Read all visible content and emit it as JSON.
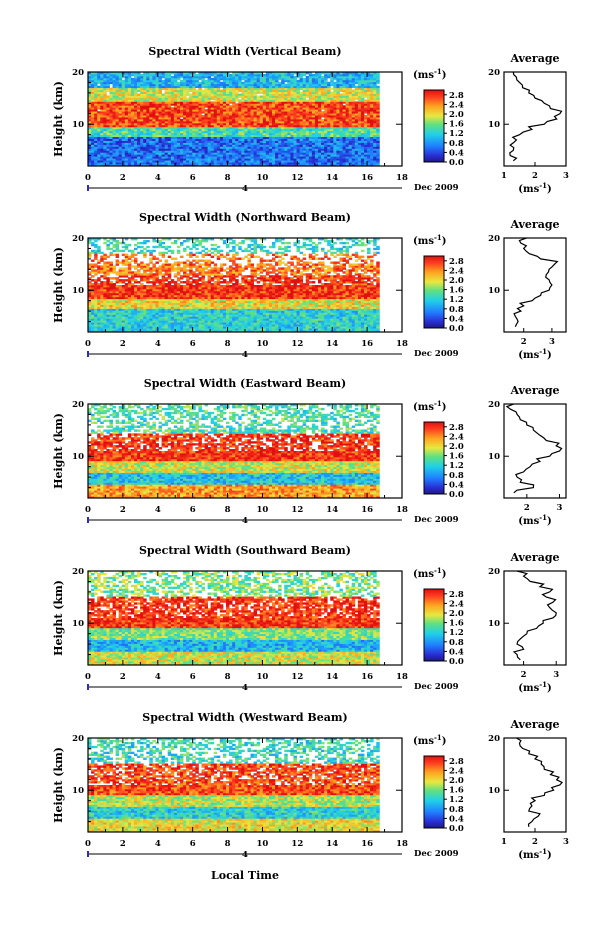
{
  "figure": {
    "xlabel": "Local Time",
    "date_label": "Dec 2009",
    "day_label": "4",
    "colorbar_unit": "(ms",
    "colorbar_unit_exp": "-1",
    "colorbar_ticks": [
      "2.8",
      "2.4",
      "2.0",
      "1.6",
      "1.2",
      "0.8",
      "0.4",
      "0.0"
    ],
    "average_title": "Average",
    "average_unit": "(ms",
    "average_unit_exp": "-1",
    "ylabel": "Height (km)"
  },
  "chart_data": [
    {
      "type": "heatmap",
      "title": "Spectral Width (Vertical Beam)",
      "x_ticks": [
        0,
        2,
        4,
        6,
        8,
        10,
        12,
        14,
        16,
        18
      ],
      "xlim": [
        0,
        18
      ],
      "ylim": [
        2,
        20
      ],
      "y_ticks": [
        10,
        20
      ],
      "colorbar_range": [
        0.0,
        3.0
      ],
      "data_x_end": 16.7,
      "bands": [
        {
          "y0": 2,
          "y1": 7.5,
          "v": 0.6
        },
        {
          "y0": 7.5,
          "y1": 9.5,
          "v": 1.4
        },
        {
          "y0": 9.5,
          "y1": 14.5,
          "v": 2.7
        },
        {
          "y0": 14.5,
          "y1": 17,
          "v": 1.9
        },
        {
          "y0": 17,
          "y1": 20,
          "v": 1.0
        }
      ],
      "gap_fraction": 0.02,
      "average": {
        "xlim": [
          1,
          3
        ],
        "x_ticks": [
          1,
          2,
          3
        ],
        "y": [
          3,
          4,
          5,
          6,
          7,
          8,
          9,
          10,
          11,
          12,
          13,
          14,
          15,
          16,
          17,
          18,
          19,
          20
        ],
        "x": [
          1.3,
          1.2,
          1.3,
          1.2,
          1.4,
          1.5,
          1.9,
          2.3,
          2.7,
          2.8,
          2.5,
          2.3,
          2.0,
          1.8,
          1.6,
          1.5,
          1.4,
          1.3
        ]
      }
    },
    {
      "type": "heatmap",
      "title": "Spectral Width (Northward Beam)",
      "x_ticks": [
        0,
        2,
        4,
        6,
        8,
        10,
        12,
        14,
        16,
        18
      ],
      "xlim": [
        0,
        18
      ],
      "ylim": [
        2,
        20
      ],
      "y_ticks": [
        10,
        20
      ],
      "colorbar_range": [
        0.0,
        3.0
      ],
      "data_x_end": 16.7,
      "bands": [
        {
          "y0": 2,
          "y1": 6.5,
          "v": 1.2
        },
        {
          "y0": 6.5,
          "y1": 8.5,
          "v": 2.0
        },
        {
          "y0": 8.5,
          "y1": 13,
          "v": 2.8
        },
        {
          "y0": 13,
          "y1": 17,
          "v": 2.5
        },
        {
          "y0": 17,
          "y1": 20,
          "v": 1.3
        }
      ],
      "gap_fraction": 0.35,
      "average": {
        "xlim": [
          1.3,
          3.5
        ],
        "x_ticks": [
          2,
          3
        ],
        "y": [
          3,
          4,
          5,
          6,
          7,
          8,
          9,
          10,
          11,
          12,
          13,
          14,
          15,
          16,
          17,
          18,
          19,
          20
        ],
        "x": [
          1.7,
          1.8,
          1.7,
          1.9,
          2.0,
          2.3,
          2.6,
          2.9,
          3.0,
          2.9,
          2.8,
          2.9,
          3.1,
          2.6,
          2.2,
          2.0,
          1.9,
          2.1
        ]
      }
    },
    {
      "type": "heatmap",
      "title": "Spectral Width (Eastward Beam)",
      "x_ticks": [
        0,
        2,
        4,
        6,
        8,
        10,
        12,
        14,
        16,
        18
      ],
      "xlim": [
        0,
        18
      ],
      "ylim": [
        2,
        20
      ],
      "y_ticks": [
        10,
        20
      ],
      "colorbar_range": [
        0.0,
        3.0
      ],
      "data_x_end": 16.7,
      "bands": [
        {
          "y0": 2,
          "y1": 4.5,
          "v": 2.3
        },
        {
          "y0": 4.5,
          "y1": 7,
          "v": 1.1
        },
        {
          "y0": 7,
          "y1": 9,
          "v": 1.9
        },
        {
          "y0": 9,
          "y1": 14.5,
          "v": 2.8
        },
        {
          "y0": 14.5,
          "y1": 20,
          "v": 1.4
        }
      ],
      "gap_fraction": 0.3,
      "average": {
        "xlim": [
          1.3,
          3.2
        ],
        "x_ticks": [
          2,
          3
        ],
        "y": [
          3,
          4,
          5,
          6,
          7,
          8,
          9,
          10,
          11,
          12,
          13,
          14,
          15,
          16,
          17,
          18,
          19,
          20
        ],
        "x": [
          1.6,
          2.2,
          1.8,
          1.7,
          1.9,
          2.1,
          2.4,
          2.7,
          3.0,
          2.9,
          2.6,
          2.4,
          2.2,
          2.0,
          1.8,
          1.7,
          1.5,
          1.6
        ]
      }
    },
    {
      "type": "heatmap",
      "title": "Spectral Width (Southward Beam)",
      "x_ticks": [
        0,
        2,
        4,
        6,
        8,
        10,
        12,
        14,
        16,
        18
      ],
      "xlim": [
        0,
        18
      ],
      "ylim": [
        2,
        20
      ],
      "y_ticks": [
        10,
        20
      ],
      "colorbar_range": [
        0.0,
        3.0
      ],
      "data_x_end": 16.7,
      "bands": [
        {
          "y0": 2,
          "y1": 4.5,
          "v": 1.9
        },
        {
          "y0": 4.5,
          "y1": 7,
          "v": 1.0
        },
        {
          "y0": 7,
          "y1": 9,
          "v": 1.6
        },
        {
          "y0": 9,
          "y1": 15,
          "v": 2.8
        },
        {
          "y0": 15,
          "y1": 20,
          "v": 1.6
        }
      ],
      "gap_fraction": 0.3,
      "average": {
        "xlim": [
          1.4,
          3.3
        ],
        "x_ticks": [
          2,
          3
        ],
        "y": [
          3,
          4,
          5,
          6,
          7,
          8,
          9,
          10,
          11,
          12,
          13,
          14,
          15,
          16,
          17,
          18,
          19,
          20
        ],
        "x": [
          1.9,
          1.8,
          2.0,
          1.8,
          1.9,
          2.1,
          2.4,
          2.6,
          2.9,
          3.0,
          2.8,
          2.9,
          2.7,
          2.8,
          2.5,
          2.2,
          2.0,
          1.8
        ]
      }
    },
    {
      "type": "heatmap",
      "title": "Spectral Width (Westward Beam)",
      "x_ticks": [
        0,
        2,
        4,
        6,
        8,
        10,
        12,
        14,
        16,
        18
      ],
      "xlim": [
        0,
        18
      ],
      "ylim": [
        2,
        20
      ],
      "y_ticks": [
        10,
        20
      ],
      "colorbar_range": [
        0.0,
        3.0
      ],
      "data_x_end": 16.7,
      "bands": [
        {
          "y0": 2,
          "y1": 4.5,
          "v": 2.0
        },
        {
          "y0": 4.5,
          "y1": 7,
          "v": 1.2
        },
        {
          "y0": 7,
          "y1": 9,
          "v": 1.8
        },
        {
          "y0": 9,
          "y1": 15,
          "v": 2.7
        },
        {
          "y0": 15,
          "y1": 20,
          "v": 1.3
        }
      ],
      "gap_fraction": 0.3,
      "average": {
        "xlim": [
          1,
          3
        ],
        "x_ticks": [
          1,
          2,
          3
        ],
        "y": [
          3,
          4,
          5,
          6,
          7,
          8,
          9,
          10,
          11,
          12,
          13,
          14,
          15,
          16,
          17,
          18,
          19,
          20
        ],
        "x": [
          1.8,
          1.9,
          2.1,
          1.8,
          1.9,
          2.0,
          2.3,
          2.6,
          2.8,
          2.7,
          2.5,
          2.3,
          2.2,
          2.0,
          1.8,
          1.6,
          1.5,
          1.4
        ]
      }
    }
  ]
}
